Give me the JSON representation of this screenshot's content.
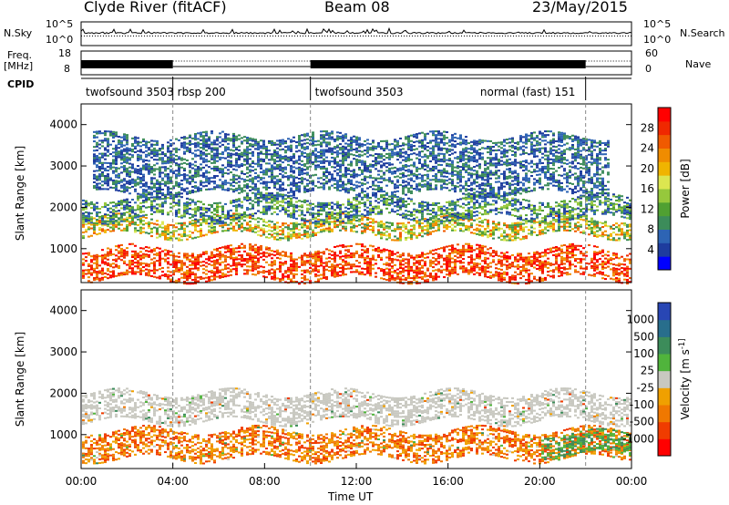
{
  "header": {
    "radar": "Clyde River (fitACF)",
    "beam": "Beam 08",
    "date": "23/May/2015"
  },
  "top_panel": {
    "nsky_label": "N.Sky",
    "nsky_ticks": [
      "10^5",
      "10^0"
    ],
    "nsearch_label": "N.Search",
    "nsearch_ticks": [
      "10^5",
      "10^0"
    ],
    "freq_label": "Freq.",
    "freq_unit": "[MHz]",
    "freq_ticks": [
      "18",
      "8"
    ],
    "nave_label": "Nave",
    "nave_ticks": [
      "60",
      "0"
    ],
    "cpid_label": "CPID",
    "cpid_segments": [
      {
        "label": "twofsound 3503",
        "start_h": 0,
        "end_h": 4.0
      },
      {
        "label": "rbsp 200",
        "start_h": 4.0,
        "end_h": 10.0
      },
      {
        "label": "twofsound 3503",
        "start_h": 10.0,
        "end_h": 22.0
      },
      {
        "label": "normal (fast) 151",
        "start_h": 22.0,
        "end_h": 24.0
      }
    ]
  },
  "chart_data": [
    {
      "type": "heatmap",
      "title": "",
      "xlabel": "Time UT",
      "ylabel": "Slant Range [km]",
      "xlim": [
        0,
        24
      ],
      "ylim": [
        180,
        4500
      ],
      "x_ticks": [
        "00:00",
        "04:00",
        "08:00",
        "12:00",
        "16:00",
        "20:00",
        "00:00"
      ],
      "y_ticks": [
        "1000",
        "2000",
        "3000",
        "4000"
      ],
      "colorbar": {
        "label": "Power [dB]",
        "ticks": [
          "4",
          "8",
          "12",
          "16",
          "20",
          "24",
          "28"
        ],
        "levels": [
          "#0000ff",
          "#1e3c9e",
          "#2d64b4",
          "#3c8c5a",
          "#50a032",
          "#96c83c",
          "#dce650",
          "#f0b400",
          "#f08c00",
          "#f05a00",
          "#f02800",
          "#ff0000"
        ]
      },
      "scatter_bands": [
        {
          "start_h": 0.0,
          "end_h": 24.0,
          "range_lo": 1300,
          "range_hi": 1750,
          "level": "high-mid"
        },
        {
          "start_h": 0.0,
          "end_h": 24.0,
          "range_lo": 250,
          "range_hi": 1000,
          "level": "high"
        },
        {
          "start_h": 0.0,
          "end_h": 24.0,
          "range_lo": 1700,
          "range_hi": 2200,
          "level": "low-mid"
        },
        {
          "start_h": 0.5,
          "end_h": 23.0,
          "range_lo": 2300,
          "range_hi": 3700,
          "level": "low"
        }
      ]
    },
    {
      "type": "heatmap",
      "title": "",
      "xlabel": "Time UT",
      "ylabel": "Slant Range [km]",
      "xlim": [
        0,
        24
      ],
      "ylim": [
        180,
        4500
      ],
      "x_ticks": [
        "00:00",
        "04:00",
        "08:00",
        "12:00",
        "16:00",
        "20:00",
        "00:00"
      ],
      "y_ticks": [
        "1000",
        "2000",
        "3000",
        "4000"
      ],
      "colorbar": {
        "label": "Velocity [m s^-1]",
        "ticks": [
          "1000",
          "500",
          "100",
          "25",
          "-25",
          "-100",
          "-500",
          "-1000"
        ],
        "levels": [
          "#2846b4",
          "#286e8c",
          "#3c8c5a",
          "#50b43c",
          "#c8c8c0",
          "#f0a000",
          "#f07800",
          "#f03c00",
          "#ff0000"
        ]
      },
      "scatter_bands": [
        {
          "start_h": 0.0,
          "end_h": 24.0,
          "range_lo": 1300,
          "range_hi": 2000,
          "level": "ground"
        },
        {
          "start_h": 0.0,
          "end_h": 24.0,
          "range_lo": 400,
          "range_hi": 1100,
          "level": "negative"
        },
        {
          "start_h": 20.0,
          "end_h": 24.0,
          "range_lo": 500,
          "range_hi": 1000,
          "level": "positive"
        }
      ]
    }
  ]
}
